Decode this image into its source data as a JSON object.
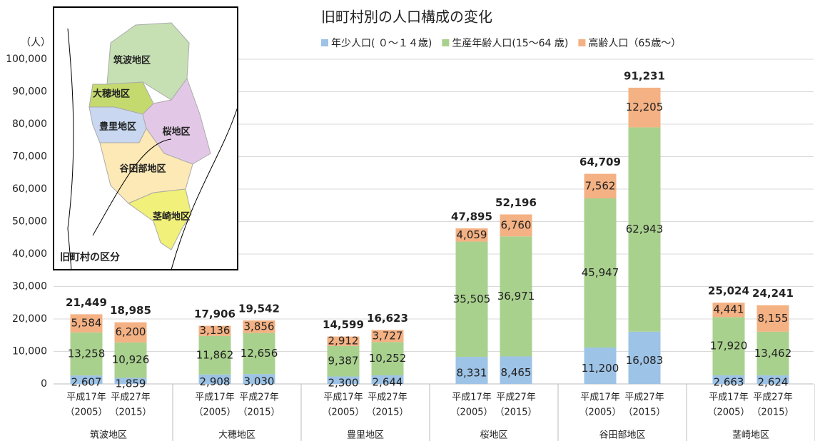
{
  "chart_data": {
    "type": "stacked_bar",
    "title": "旧町村別の人口構成の変化",
    "y_unit": "（人）",
    "groups": [
      "筑波地区",
      "大穂地区",
      "豊里地区",
      "桜地区",
      "谷田部地区",
      "茎崎地区"
    ],
    "categories": [
      [
        "平成17年",
        "（2005）"
      ],
      [
        "平成27年",
        "（2015）"
      ],
      [
        "平成17年",
        "（2005）"
      ],
      [
        "平成27年",
        "（2015）"
      ],
      [
        "平成17年",
        "（2005）"
      ],
      [
        "平成27年",
        "（2015）"
      ],
      [
        "平成17年",
        "（2005）"
      ],
      [
        "平成27年",
        "（2015）"
      ],
      [
        "平成17年",
        "（2005）"
      ],
      [
        "平成27年",
        "（2015）"
      ],
      [
        "平成17年",
        "（2005）"
      ],
      [
        "平成27年",
        "（2015）"
      ]
    ],
    "series": [
      {
        "name": "年少人口( ０～１４歳)",
        "color": "#9dc3e6",
        "values": [
          2607,
          1859,
          2908,
          3030,
          2300,
          2644,
          8331,
          8465,
          11200,
          16083,
          2663,
          2624
        ],
        "value_labels": [
          "2,607",
          "1,859",
          "2,908",
          "3,030",
          "2,300",
          "2,644",
          "8,331",
          "8,465",
          "11,200",
          "16,083",
          "2,663",
          "2,624"
        ]
      },
      {
        "name": "生産年齢人口(15～64 歳)",
        "color": "#a9d18e",
        "values": [
          13258,
          10926,
          11862,
          12656,
          9387,
          10252,
          35505,
          36971,
          45947,
          62943,
          17920,
          13462
        ],
        "value_labels": [
          "13,258",
          "10,926",
          "11,862",
          "12,656",
          "9,387",
          "10,252",
          "35,505",
          "36,971",
          "45,947",
          "62,943",
          "17,920",
          "13,462"
        ]
      },
      {
        "name": "高齢人口（65歳～）",
        "color": "#f4b183",
        "values": [
          5584,
          6200,
          3136,
          3856,
          2912,
          3727,
          4059,
          6760,
          7562,
          12205,
          4441,
          8155
        ],
        "value_labels": [
          "5,584",
          "6,200",
          "3,136",
          "3,856",
          "2,912",
          "3,727",
          "4,059",
          "6,760",
          "7,562",
          "12,205",
          "4,441",
          "8,155"
        ]
      }
    ],
    "totals": {
      "values": [
        21449,
        18985,
        17906,
        19542,
        14599,
        16623,
        47895,
        52196,
        64709,
        91231,
        25024,
        24241
      ],
      "value_labels": [
        "21,449",
        "18,985",
        "17,906",
        "19,542",
        "14,599",
        "16,623",
        "47,895",
        "52,196",
        "64,709",
        "91,231",
        "25,024",
        "24,241"
      ]
    },
    "ylim": [
      0,
      100000
    ],
    "yticks": [
      0,
      {
        "value": 10000,
        "label": "10,000"
      },
      {
        "value": 20000,
        "label": "20,000"
      },
      {
        "value": 30000,
        "label": "30,000"
      },
      {
        "value": 40000,
        "label": "40,000"
      },
      {
        "value": 50000,
        "label": "50,000"
      },
      {
        "value": 60000,
        "label": "60,000"
      },
      {
        "value": 70000,
        "label": "70,000"
      },
      {
        "value": 80000,
        "label": "80,000"
      },
      {
        "value": 90000,
        "label": "90,000"
      },
      {
        "value": 100000,
        "label": "100,000"
      }
    ],
    "grid": true,
    "legend": "top"
  },
  "inset": {
    "title": "旧町村の区分",
    "regions": [
      "筑波地区",
      "大穂地区",
      "豊里地区",
      "桜地区",
      "谷田部地区",
      "茎崎地区"
    ]
  }
}
